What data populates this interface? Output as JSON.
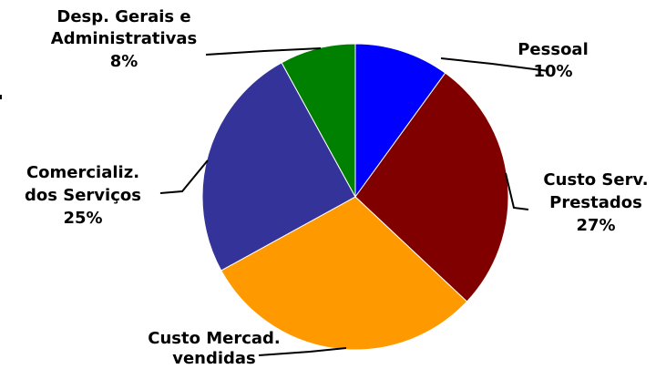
{
  "chart_data": {
    "type": "pie",
    "title": "",
    "slices": [
      {
        "label": [
          "Pessoal"
        ],
        "percent_label": "10%",
        "value": 10,
        "color": "#0000ff"
      },
      {
        "label": [
          "Custo Serv.",
          "Prestados"
        ],
        "percent_label": "27%",
        "value": 27,
        "color": "#800000"
      },
      {
        "label": [
          "Custo Mercad.",
          "vendidas"
        ],
        "percent_label": "",
        "value": 30,
        "color": "#ff9900"
      },
      {
        "label": [
          "Comercializ.",
          "dos Serviços"
        ],
        "percent_label": "25%",
        "value": 25,
        "color": "#333399"
      },
      {
        "label": [
          "Desp. Gerais e",
          "Administrativas"
        ],
        "percent_label": "8%",
        "value": 8,
        "color": "#008000"
      }
    ]
  }
}
